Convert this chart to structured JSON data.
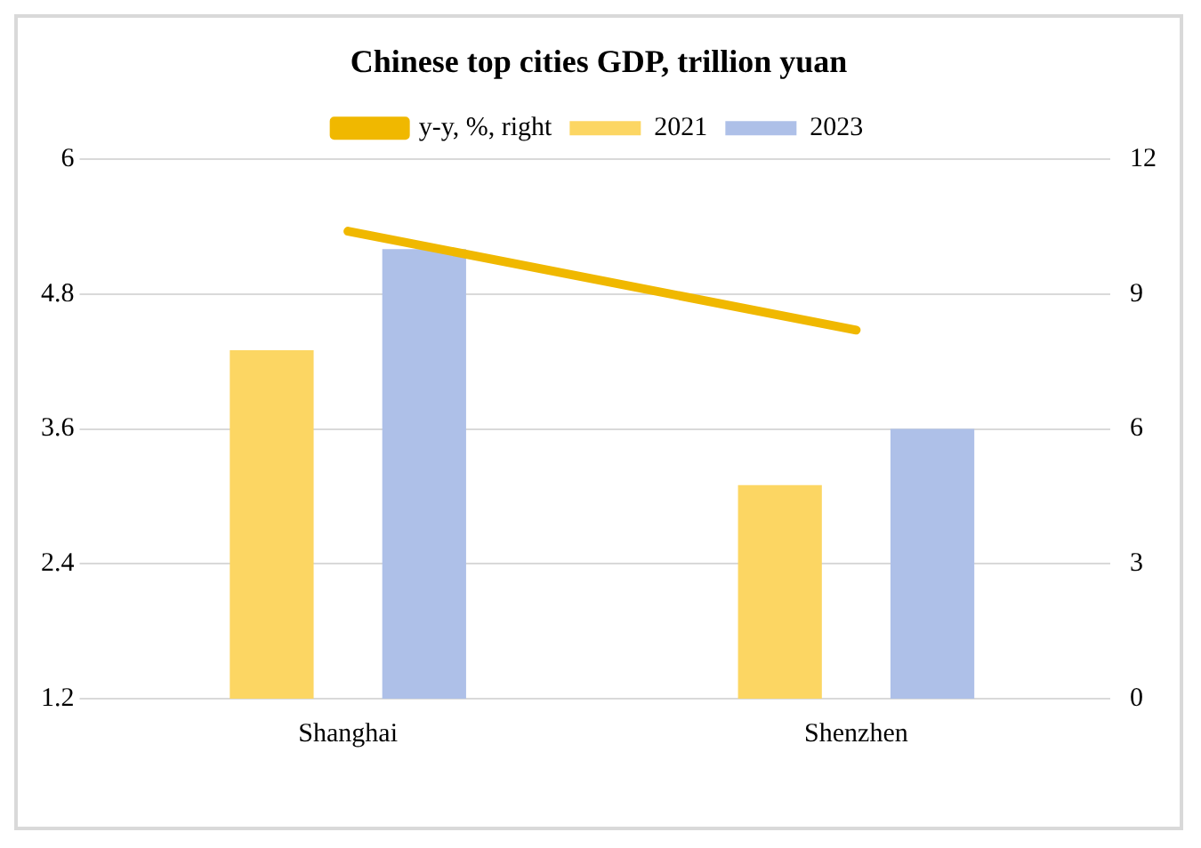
{
  "chart_data": {
    "type": "bar",
    "title": "Chinese top cities GDP, trillion yuan",
    "categories": [
      "Shanghai",
      "Shenzhen"
    ],
    "series": [
      {
        "name": "2021",
        "color": "#fcd663",
        "values": [
          4.3,
          3.1
        ]
      },
      {
        "name": "2023",
        "color": "#aec0e8",
        "values": [
          5.2,
          3.6
        ]
      },
      {
        "name": "y-y, %, right",
        "type": "line",
        "axis": "y2",
        "color": "#f0b800",
        "values": [
          10.4,
          8.2
        ]
      }
    ],
    "ylim": [
      1.2,
      6
    ],
    "yticks": [
      1.2,
      2.4,
      3.6,
      4.8,
      6
    ],
    "y2lim": [
      0,
      12
    ],
    "y2ticks": [
      0,
      3,
      6,
      9,
      12
    ],
    "grid": "y",
    "legend": "top",
    "marker": "none"
  }
}
